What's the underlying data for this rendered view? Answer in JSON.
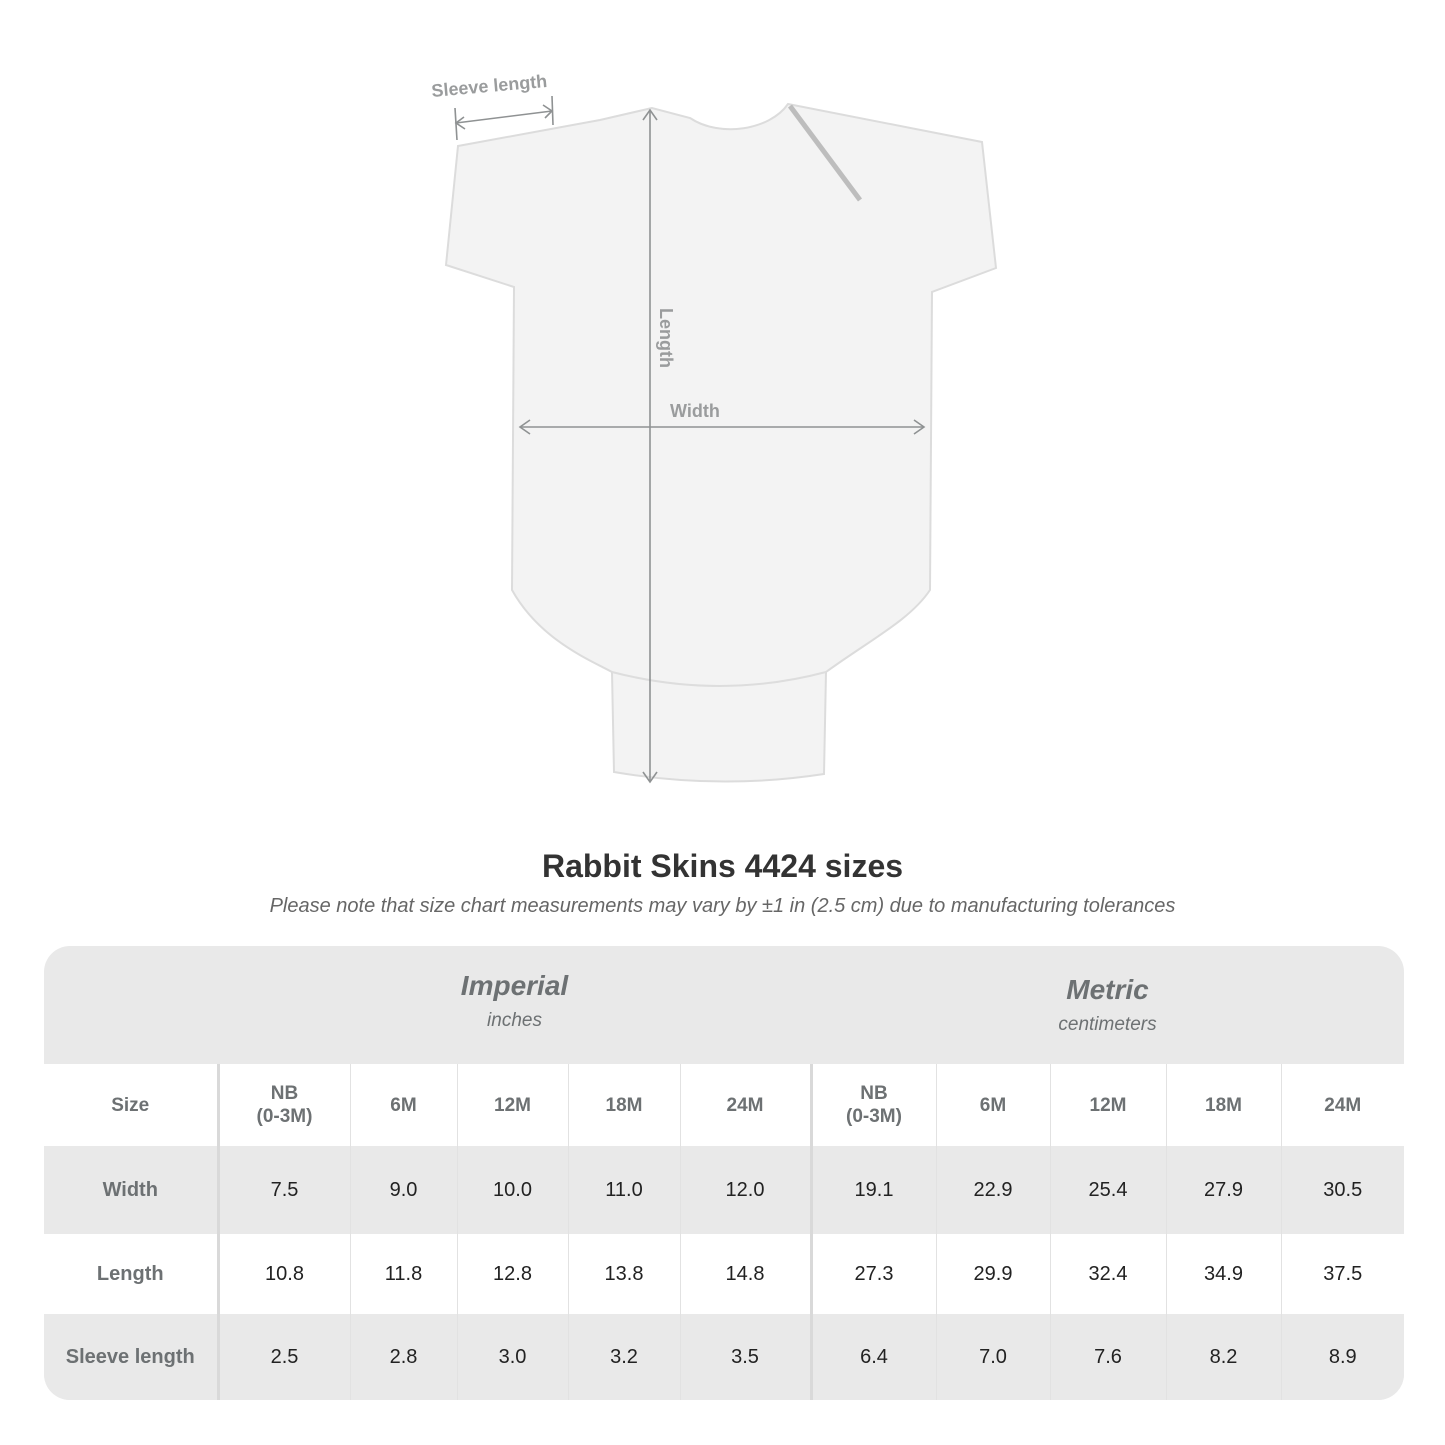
{
  "diagram": {
    "labels": {
      "sleeve": "Sleeve length",
      "length": "Length",
      "width": "Width"
    },
    "colors": {
      "garment": "#f3f3f3",
      "arrows": "#8f9293"
    }
  },
  "title": "Rabbit Skins 4424 sizes",
  "note": "Please note that size chart measurements may vary by ±1 in (2.5 cm) due to manufacturing tolerances",
  "table": {
    "imperial": {
      "name": "Imperial",
      "unit": "inches"
    },
    "metric": {
      "name": "Metric",
      "unit": "centimeters"
    },
    "size_label": "Size",
    "sizes": [
      [
        "NB",
        "(0-3M)"
      ],
      [
        "6M"
      ],
      [
        "12M"
      ],
      [
        "18M"
      ],
      [
        "24M"
      ]
    ],
    "rows": [
      {
        "label": "Width",
        "imperial": [
          "7.5",
          "9.0",
          "10.0",
          "11.0",
          "12.0"
        ],
        "metric": [
          "19.1",
          "22.9",
          "25.4",
          "27.9",
          "30.5"
        ]
      },
      {
        "label": "Length",
        "imperial": [
          "10.8",
          "11.8",
          "12.8",
          "13.8",
          "14.8"
        ],
        "metric": [
          "27.3",
          "29.9",
          "32.4",
          "34.9",
          "37.5"
        ]
      },
      {
        "label": "Sleeve length",
        "imperial": [
          "2.5",
          "2.8",
          "3.0",
          "3.2",
          "3.5"
        ],
        "metric": [
          "6.4",
          "7.0",
          "7.6",
          "8.2",
          "8.9"
        ]
      }
    ],
    "colors": {
      "header_bg": "#e9e9e9",
      "label_text": "#6d7173"
    }
  }
}
